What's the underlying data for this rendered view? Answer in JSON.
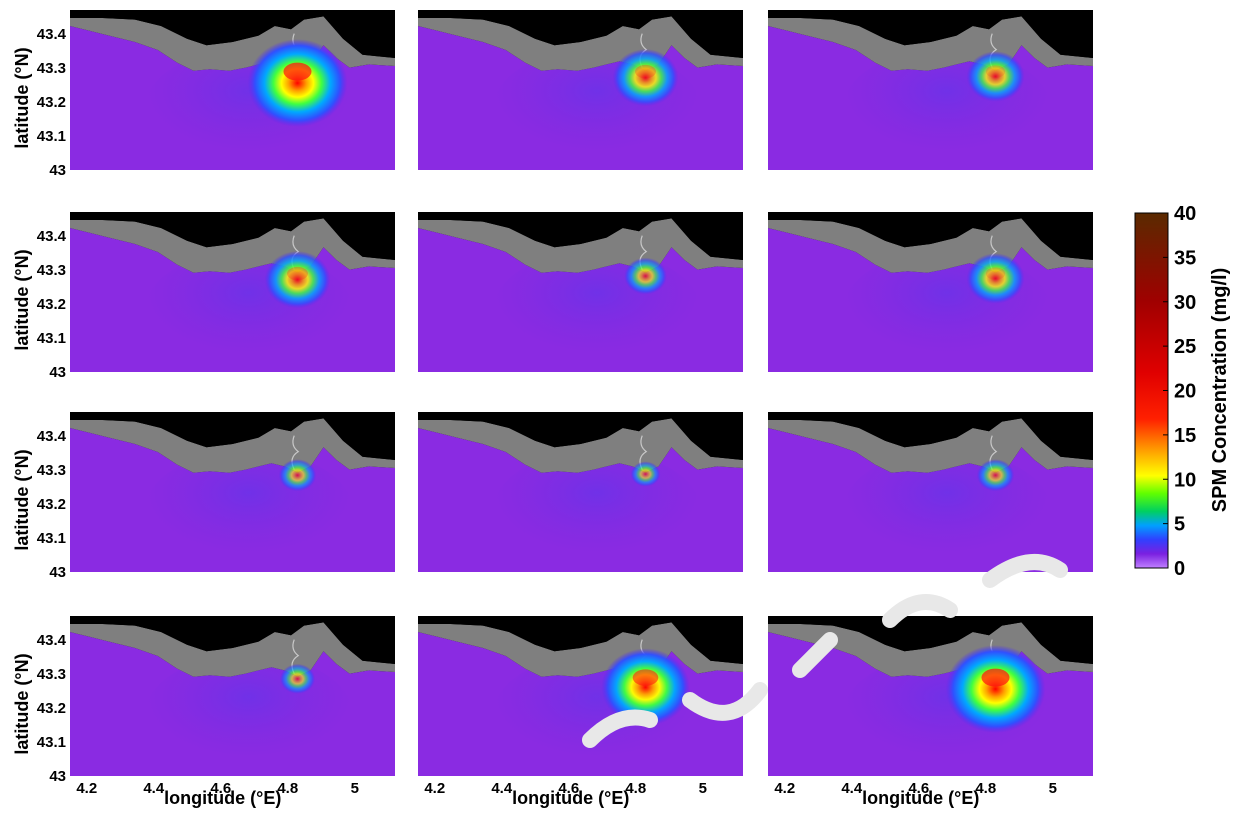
{
  "chart_data": {
    "type": "heatmap",
    "panels": {
      "rows": 4,
      "cols": 3,
      "plume_intensity": [
        [
          1.0,
          0.55,
          0.45
        ],
        [
          0.55,
          0.25,
          0.45
        ],
        [
          0.18,
          0.08,
          0.18
        ],
        [
          0.15,
          0.85,
          1.0
        ]
      ]
    },
    "xlabel": "longitude (°E)",
    "ylabel": "latitude (°N)",
    "x_ticks": [
      "4.2",
      "4.4",
      "4.6",
      "4.8",
      "5"
    ],
    "y_ticks": [
      "43.4",
      "43.3",
      "43.2",
      "43.1",
      "43"
    ],
    "xlim": [
      4.15,
      5.12
    ],
    "ylim": [
      43.0,
      43.47
    ],
    "colorbar": {
      "label": "SPM Concentration (mg/l)",
      "ticks": [
        "40",
        "35",
        "30",
        "25",
        "20",
        "15",
        "10",
        "5",
        "0"
      ],
      "range": [
        0,
        40
      ]
    },
    "colors": {
      "sea": "#8a2be2",
      "land": "#7f7f7f",
      "background": "#000000"
    }
  }
}
